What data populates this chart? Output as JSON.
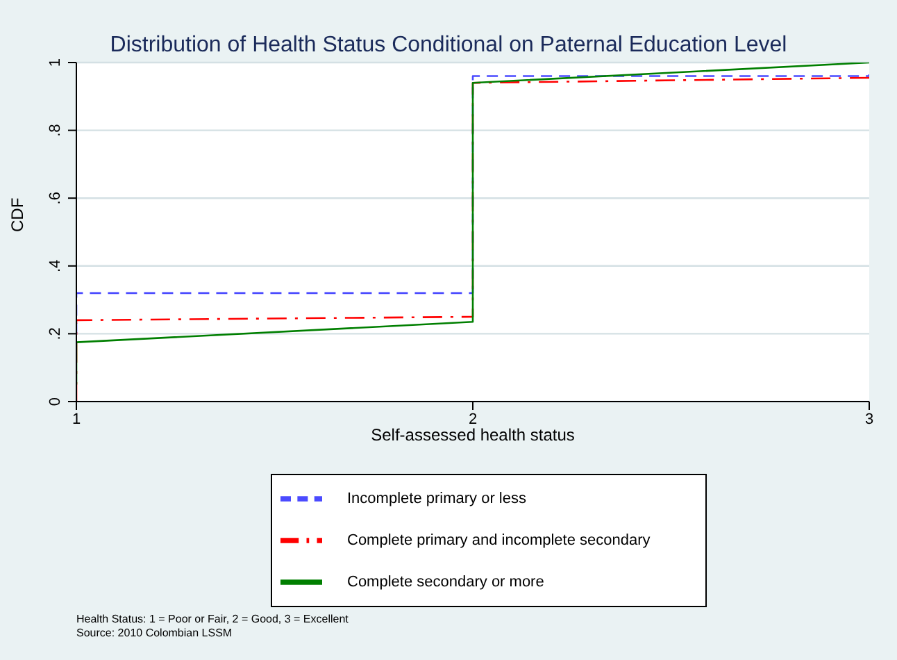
{
  "chart_data": {
    "type": "line",
    "title": "Distribution of Health Status Conditional on Paternal Education Level",
    "xlabel": "Self-assessed health status",
    "ylabel": "CDF",
    "xlim": [
      1,
      3
    ],
    "xticks": [
      1,
      2,
      3
    ],
    "ylim": [
      0,
      1
    ],
    "yticks": [
      {
        "value": 0,
        "label": "0"
      },
      {
        "value": 0.2,
        "label": ".2"
      },
      {
        "value": 0.4,
        "label": ".4"
      },
      {
        "value": 0.6,
        "label": ".6"
      },
      {
        "value": 0.8,
        "label": ".8"
      },
      {
        "value": 1,
        "label": "1"
      }
    ],
    "grid": "y",
    "legend": "bottom",
    "marker": "none",
    "series": [
      {
        "name": "Incomplete primary or less",
        "color": "#4b4bff",
        "line_style": "dashed",
        "x": [
          1,
          1,
          2,
          2,
          3,
          3
        ],
        "values": [
          0.2,
          0.32,
          0.32,
          0.96,
          0.96,
          0.965
        ]
      },
      {
        "name": "Complete primary and incomplete secondary",
        "color": "#ff0000",
        "line_style": "dashdot",
        "x": [
          1,
          1,
          2,
          2,
          3,
          3
        ],
        "values": [
          0,
          0.24,
          0.25,
          0.94,
          0.955,
          0.965
        ]
      },
      {
        "name": "Complete secondary or more",
        "color": "#007f00",
        "line_style": "solid",
        "x": [
          1,
          1,
          2,
          2,
          3
        ],
        "values": [
          0.05,
          0.175,
          0.235,
          0.94,
          1
        ]
      }
    ],
    "annotations": [
      "Health Status: 1 = Poor or Fair, 2 = Good, 3 = Excellent",
      "Source: 2010 Colombian LSSM"
    ]
  }
}
